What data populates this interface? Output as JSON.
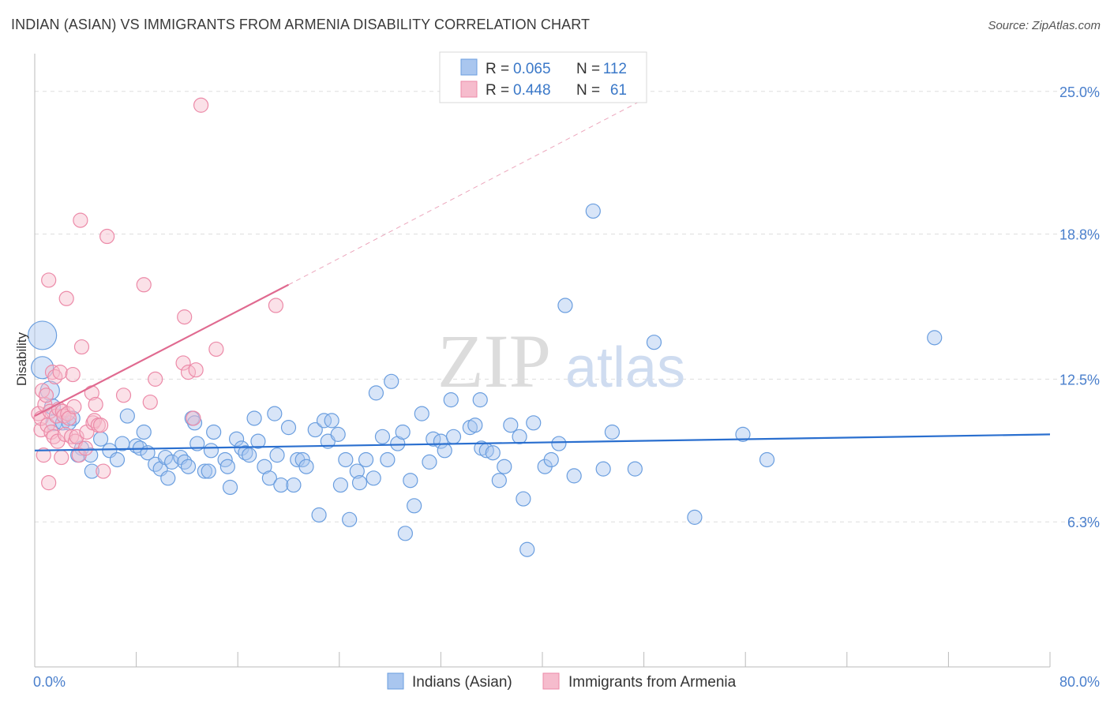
{
  "title": "INDIAN (ASIAN) VS IMMIGRANTS FROM ARMENIA DISABILITY CORRELATION CHART",
  "source": "Source: ZipAtlas.com",
  "watermark": {
    "zip": "ZIP",
    "atlas": "atlas"
  },
  "colors": {
    "blue_fill": "#a9c6ef",
    "blue_stroke": "#6a9edf",
    "blue_line": "#2a6fcf",
    "pink_fill": "#f6bccd",
    "pink_stroke": "#ec8aa8",
    "pink_line": "#e06a90",
    "grid": "#dddddd",
    "tick_text": "#4a7fcc"
  },
  "legend": {
    "rows": [
      {
        "r_label": "R =",
        "r_value": "0.065",
        "n_label": "N =",
        "n_value": "112",
        "color": "#a9c6ef"
      },
      {
        "r_label": "R =",
        "r_value": "0.448",
        "n_label": "N =",
        "n_value": "61",
        "color": "#f6bccd"
      }
    ]
  },
  "chart_data": {
    "type": "scatter",
    "title": "INDIAN (ASIAN) VS IMMIGRANTS FROM ARMENIA DISABILITY CORRELATION CHART",
    "xlabel": "",
    "ylabel": "Disability",
    "xlim": [
      0,
      80
    ],
    "ylim": [
      0,
      26.5
    ],
    "x_tick_labels": [
      "0.0%",
      "80.0%"
    ],
    "y_ticks": [
      6.3,
      12.5,
      18.8,
      25.0
    ],
    "y_tick_labels": [
      "6.3%",
      "12.5%",
      "18.8%",
      "25.0%"
    ],
    "grid": true,
    "legend_position": "top-center",
    "series": [
      {
        "name": "Indians (Asian)",
        "color": "#a9c6ef",
        "trend": {
          "x": [
            0,
            80
          ],
          "y": [
            9.4,
            10.1
          ]
        },
        "points": [
          [
            0.6,
            14.4,
            18
          ],
          [
            0.6,
            13.0,
            14
          ],
          [
            1.2,
            12.0,
            12
          ],
          [
            1.4,
            11.3,
            10
          ],
          [
            1.5,
            10.6,
            10
          ],
          [
            2.2,
            10.6,
            9
          ],
          [
            2.7,
            10.6,
            9
          ],
          [
            3.0,
            10.8,
            9
          ],
          [
            3.7,
            9.5,
            9
          ],
          [
            3.4,
            9.2,
            9
          ],
          [
            4.4,
            9.2,
            9
          ],
          [
            4.5,
            8.5,
            9
          ],
          [
            5.2,
            9.9,
            9
          ],
          [
            5.9,
            9.4,
            9
          ],
          [
            6.5,
            9.0,
            9
          ],
          [
            6.9,
            9.7,
            9
          ],
          [
            7.3,
            10.9,
            9
          ],
          [
            8.0,
            9.6,
            9
          ],
          [
            8.3,
            9.5,
            9
          ],
          [
            8.6,
            10.2,
            9
          ],
          [
            8.9,
            9.3,
            9
          ],
          [
            9.5,
            8.8,
            9
          ],
          [
            9.9,
            8.6,
            9
          ],
          [
            10.3,
            9.1,
            9
          ],
          [
            10.5,
            8.2,
            9
          ],
          [
            10.8,
            8.9,
            9
          ],
          [
            11.5,
            9.1,
            9
          ],
          [
            11.8,
            8.9,
            9
          ],
          [
            12.1,
            8.7,
            9
          ],
          [
            12.4,
            10.8,
            9
          ],
          [
            12.6,
            10.6,
            9
          ],
          [
            12.8,
            9.7,
            9
          ],
          [
            13.4,
            8.5,
            9
          ],
          [
            13.7,
            8.5,
            9
          ],
          [
            13.9,
            9.4,
            9
          ],
          [
            14.1,
            10.2,
            9
          ],
          [
            15.0,
            9.0,
            9
          ],
          [
            15.2,
            8.7,
            9
          ],
          [
            15.4,
            7.8,
            9
          ],
          [
            15.9,
            9.9,
            9
          ],
          [
            16.3,
            9.5,
            9
          ],
          [
            16.6,
            9.3,
            9
          ],
          [
            16.9,
            9.2,
            9
          ],
          [
            17.3,
            10.8,
            9
          ],
          [
            17.6,
            9.8,
            9
          ],
          [
            18.1,
            8.7,
            9
          ],
          [
            18.5,
            8.2,
            9
          ],
          [
            18.9,
            11.0,
            9
          ],
          [
            19.1,
            9.2,
            9
          ],
          [
            19.4,
            7.9,
            9
          ],
          [
            20.0,
            10.4,
            9
          ],
          [
            20.4,
            7.9,
            9
          ],
          [
            20.7,
            9.0,
            9
          ],
          [
            21.1,
            9.0,
            9
          ],
          [
            21.4,
            8.7,
            9
          ],
          [
            22.1,
            10.3,
            9
          ],
          [
            22.4,
            6.6,
            9
          ],
          [
            22.8,
            10.7,
            9
          ],
          [
            23.1,
            9.8,
            9
          ],
          [
            23.4,
            10.7,
            9
          ],
          [
            23.9,
            10.1,
            9
          ],
          [
            24.1,
            7.9,
            9
          ],
          [
            24.5,
            9.0,
            9
          ],
          [
            24.8,
            6.4,
            9
          ],
          [
            25.4,
            8.5,
            9
          ],
          [
            25.6,
            8.0,
            9
          ],
          [
            26.1,
            9.0,
            9
          ],
          [
            26.7,
            8.2,
            9
          ],
          [
            26.9,
            11.9,
            9
          ],
          [
            27.4,
            10.0,
            9
          ],
          [
            27.8,
            9.0,
            9
          ],
          [
            28.1,
            12.4,
            9
          ],
          [
            28.6,
            9.7,
            9
          ],
          [
            29.0,
            10.2,
            9
          ],
          [
            29.2,
            5.8,
            9
          ],
          [
            29.6,
            8.1,
            9
          ],
          [
            29.9,
            7.0,
            9
          ],
          [
            30.5,
            11.0,
            9
          ],
          [
            31.1,
            8.9,
            9
          ],
          [
            31.4,
            9.9,
            9
          ],
          [
            32.0,
            9.8,
            9
          ],
          [
            32.3,
            9.4,
            9
          ],
          [
            32.8,
            11.6,
            9
          ],
          [
            33.0,
            10.0,
            9
          ],
          [
            34.3,
            10.4,
            9
          ],
          [
            34.7,
            10.5,
            9
          ],
          [
            35.1,
            11.6,
            9
          ],
          [
            35.2,
            9.5,
            9
          ],
          [
            35.6,
            9.4,
            9
          ],
          [
            36.1,
            9.3,
            9
          ],
          [
            36.6,
            8.1,
            9
          ],
          [
            37.0,
            8.7,
            9
          ],
          [
            37.5,
            10.5,
            9
          ],
          [
            38.2,
            10.0,
            9
          ],
          [
            38.5,
            7.3,
            9
          ],
          [
            38.8,
            5.1,
            9
          ],
          [
            39.3,
            10.6,
            9
          ],
          [
            40.2,
            8.7,
            9
          ],
          [
            40.7,
            9.0,
            9
          ],
          [
            41.3,
            9.7,
            9
          ],
          [
            42.5,
            8.3,
            9
          ],
          [
            44.0,
            19.8,
            9
          ],
          [
            44.8,
            8.6,
            9
          ],
          [
            45.5,
            10.2,
            9
          ],
          [
            47.3,
            8.6,
            9
          ],
          [
            41.8,
            15.7,
            9
          ],
          [
            48.8,
            14.1,
            9
          ],
          [
            52.0,
            6.5,
            9
          ],
          [
            55.8,
            10.1,
            9
          ],
          [
            57.7,
            9.0,
            9
          ],
          [
            70.9,
            14.3,
            9
          ]
        ]
      },
      {
        "name": "Immigrants from Armenia",
        "color": "#f6bccd",
        "trend": {
          "x": [
            0,
            20
          ],
          "y": [
            10.9,
            16.6
          ],
          "dashed_to": {
            "x": 48.5,
            "y": 24.8
          }
        },
        "points": [
          [
            0.3,
            11.0,
            9
          ],
          [
            0.5,
            10.3,
            9
          ],
          [
            0.5,
            10.8,
            9
          ],
          [
            0.6,
            12.0,
            9
          ],
          [
            0.7,
            9.2,
            9
          ],
          [
            0.8,
            11.4,
            9
          ],
          [
            0.9,
            11.8,
            9
          ],
          [
            1.0,
            10.5,
            9
          ],
          [
            1.1,
            16.8,
            9
          ],
          [
            1.1,
            8.0,
            9
          ],
          [
            1.2,
            11.1,
            9
          ],
          [
            1.3,
            10.2,
            9
          ],
          [
            1.4,
            12.8,
            9
          ],
          [
            1.5,
            10.0,
            9
          ],
          [
            1.6,
            12.6,
            9
          ],
          [
            1.7,
            10.9,
            9
          ],
          [
            1.8,
            9.8,
            9
          ],
          [
            1.9,
            11.2,
            9
          ],
          [
            2.0,
            12.8,
            9
          ],
          [
            2.1,
            9.1,
            9
          ],
          [
            2.2,
            11.1,
            9
          ],
          [
            2.3,
            10.9,
            9
          ],
          [
            2.4,
            10.1,
            9
          ],
          [
            2.5,
            16.0,
            9
          ],
          [
            2.6,
            11.0,
            9
          ],
          [
            2.7,
            10.8,
            9
          ],
          [
            2.9,
            10.0,
            9
          ],
          [
            3.0,
            12.7,
            9
          ],
          [
            3.1,
            11.3,
            9
          ],
          [
            3.2,
            9.8,
            9
          ],
          [
            3.3,
            10.0,
            9
          ],
          [
            3.5,
            9.2,
            9
          ],
          [
            3.6,
            19.4,
            9
          ],
          [
            3.7,
            13.9,
            9
          ],
          [
            4.0,
            9.5,
            9
          ],
          [
            4.1,
            10.2,
            9
          ],
          [
            4.5,
            11.9,
            9
          ],
          [
            4.6,
            10.6,
            9
          ],
          [
            4.7,
            10.7,
            9
          ],
          [
            4.8,
            11.4,
            9
          ],
          [
            5.0,
            10.5,
            9
          ],
          [
            5.2,
            10.5,
            9
          ],
          [
            5.4,
            8.5,
            9
          ],
          [
            5.7,
            18.7,
            9
          ],
          [
            7.0,
            11.8,
            9
          ],
          [
            8.6,
            16.6,
            9
          ],
          [
            9.1,
            11.5,
            9
          ],
          [
            9.5,
            12.5,
            9
          ],
          [
            11.7,
            13.2,
            9
          ],
          [
            11.8,
            15.2,
            9
          ],
          [
            12.1,
            12.8,
            9
          ],
          [
            12.5,
            10.8,
            9
          ],
          [
            12.7,
            12.9,
            9
          ],
          [
            13.1,
            24.4,
            9
          ],
          [
            14.3,
            13.8,
            9
          ],
          [
            19.0,
            15.7,
            9
          ]
        ]
      }
    ]
  }
}
